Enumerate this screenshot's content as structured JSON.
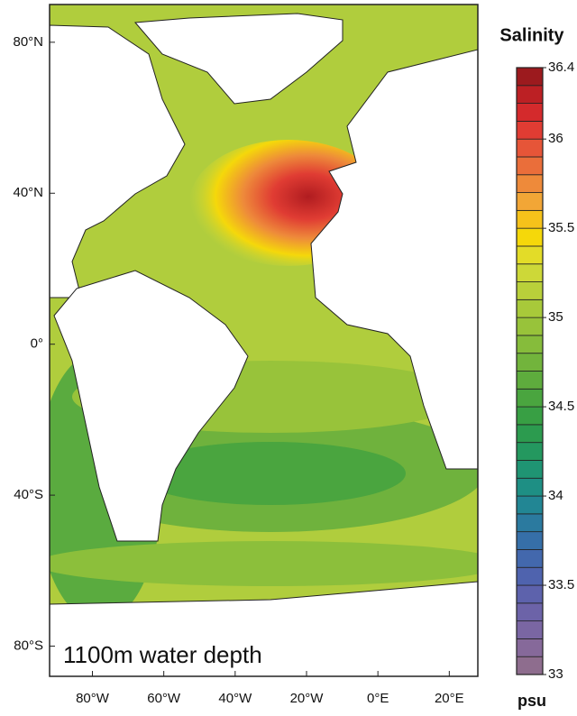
{
  "map": {
    "annotation": "1100m water depth",
    "xlim": [
      -92,
      28
    ],
    "ylim": [
      -88,
      90
    ],
    "xticks": [
      {
        "value": -80,
        "label": "80°W"
      },
      {
        "value": -60,
        "label": "60°W"
      },
      {
        "value": -40,
        "label": "40°W"
      },
      {
        "value": -20,
        "label": "20°W"
      },
      {
        "value": 0,
        "label": "0°E"
      },
      {
        "value": 20,
        "label": "20°E"
      }
    ],
    "yticks": [
      {
        "value": 80,
        "label": "80°N"
      },
      {
        "value": 40,
        "label": "40°N"
      },
      {
        "value": 0,
        "label": "0°"
      },
      {
        "value": -40,
        "label": "40°S"
      },
      {
        "value": -80,
        "label": "80°S"
      }
    ]
  },
  "colorbar": {
    "title": "Salinity",
    "unit": "psu",
    "lim": [
      33,
      36.4
    ],
    "ticks": [
      33,
      33.5,
      34,
      34.5,
      35,
      35.5,
      36,
      36.4
    ],
    "colors": [
      "#8e6d8e",
      "#86699a",
      "#7a66a3",
      "#6c63a8",
      "#5d62ac",
      "#4f63ae",
      "#4368ad",
      "#366fa8",
      "#2b7a9f",
      "#228694",
      "#1e8f84",
      "#1f9473",
      "#24985f",
      "#2c9b4f",
      "#389f44",
      "#4aa53f",
      "#5eac3d",
      "#72b43c",
      "#86bc3b",
      "#98c33a",
      "#a8c93a",
      "#b9d03a",
      "#cdd838",
      "#e3dc28",
      "#f5d80a",
      "#f6c21a",
      "#f2a636",
      "#ee8a3a",
      "#ea6e3a",
      "#e65538",
      "#e03c33",
      "#d42a2c",
      "#bc2024",
      "#9c1a1e"
    ]
  }
}
